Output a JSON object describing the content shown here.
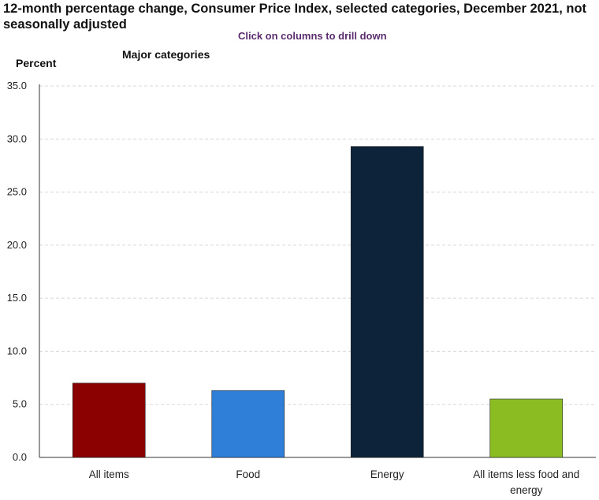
{
  "header": {
    "title": "12-month percentage change, Consumer Price Index, selected categories, December 2021, not seasonally adjusted",
    "hint": "Click on columns to drill down"
  },
  "chart_data": {
    "type": "bar",
    "title": "12-month percentage change, Consumer Price Index, selected categories, December 2021, not seasonally adjusted",
    "subtitle": "Major categories",
    "ylabel": "Percent",
    "xlabel": "",
    "ylim": [
      0,
      35
    ],
    "yticks": [
      "0.0",
      "5.0",
      "10.0",
      "15.0",
      "20.0",
      "25.0",
      "30.0",
      "35.0"
    ],
    "grid": true,
    "categories": [
      "All items",
      "Food",
      "Energy",
      "All items less food and energy"
    ],
    "category_lines": [
      [
        "All items"
      ],
      [
        "Food"
      ],
      [
        "Energy"
      ],
      [
        "All items less food and",
        "energy"
      ]
    ],
    "values": [
      7.0,
      6.3,
      29.3,
      5.5
    ],
    "colors": [
      "#8b0000",
      "#2f7ed8",
      "#0d233a",
      "#8bbc21"
    ]
  }
}
